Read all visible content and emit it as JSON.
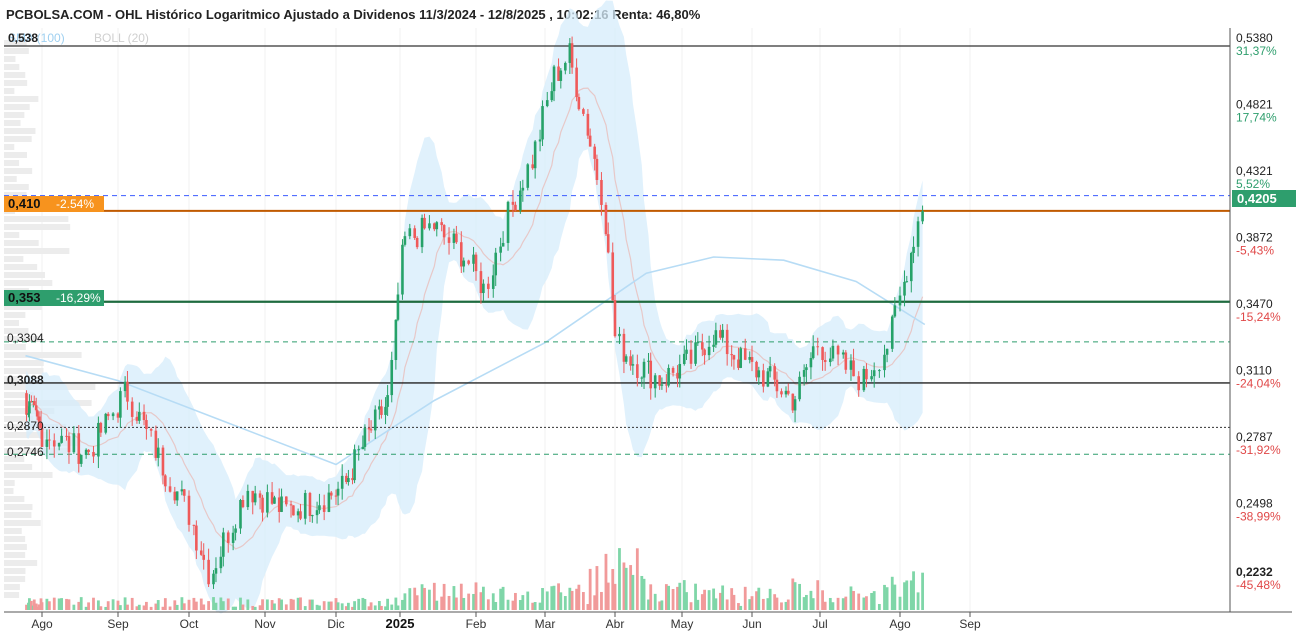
{
  "title": "PCBOLSA.COM - OHL Histórico Logaritmico Ajustado a Dividenos 11/3/2024 - 12/8/2025 , 10:02:16 Renta: 46,80%",
  "legend": {
    "sma": "SMA (100)",
    "boll": "BOLL (20)",
    "top_value": "0,538"
  },
  "colors": {
    "up": "#26a269",
    "down": "#ef5a5a",
    "vol_up": "#7fd6a8",
    "vol_down": "#f19a9a",
    "band_fill": "#d6ecfb",
    "sma": "#b7dcf5",
    "boll_mid": "#e7c8c8",
    "orange": "#f7931e",
    "green_box": "#2e9e6d"
  },
  "right_axis": [
    {
      "price": "0,5380",
      "pct": "31,37%",
      "sign": "pos"
    },
    {
      "price": "0,4821",
      "pct": "17,74%",
      "sign": "pos"
    },
    {
      "price": "0,4321",
      "pct": "5,52%",
      "sign": "pos"
    },
    {
      "price": "0,3872",
      "pct": "-5,43%",
      "sign": "neg"
    },
    {
      "price": "0,3470",
      "pct": "-15,24%",
      "sign": "neg"
    },
    {
      "price": "0,3110",
      "pct": "-24,04%",
      "sign": "neg"
    },
    {
      "price": "0,2787",
      "pct": "-31,92%",
      "sign": "neg"
    },
    {
      "price": "0,2498",
      "pct": "-38,99%",
      "sign": "neg"
    },
    {
      "price": "0,2232",
      "pct": "-45,48%",
      "sign": "neg"
    }
  ],
  "current_price": "0,4205",
  "left_levels": {
    "orange_value": "0,410",
    "orange_pct": "-2.54%",
    "green_value": "0,353",
    "green_pct": "-16,29%",
    "l1": "0,3304",
    "l2": "0,3088",
    "l3": "0,2870",
    "l4": "0,2746"
  },
  "months": [
    "Ago",
    "Sep",
    "Oct",
    "Nov",
    "Dic",
    "2025",
    "Feb",
    "Mar",
    "Abr",
    "May",
    "Jun",
    "Jul",
    "Ago",
    "Sep"
  ],
  "chart_data": {
    "type": "line",
    "title": "PCBOLSA.COM - OHL Histórico Logaritmico Ajustado a Dividenos 11/3/2024 - 12/8/2025 , 10:02:16 Renta: 46,80%",
    "y_scale": "log",
    "ylim": [
      0.215,
      0.555
    ],
    "x_ticks": [
      "Ago",
      "Sep",
      "Oct",
      "Nov",
      "Dic",
      "2025",
      "Feb",
      "Mar",
      "Abr",
      "May",
      "Jun",
      "Jul",
      "Ago",
      "Sep"
    ],
    "series": [
      {
        "name": "",
        "x": [
          "2024-07-15",
          "2024-08-01",
          "2024-08-20",
          "2024-09-05",
          "2024-09-20",
          "2024-10-01",
          "2024-10-10",
          "2024-10-25",
          "2024-11-10",
          "2024-11-25",
          "2024-12-05",
          "2024-12-15",
          "2024-12-27",
          "2025-01-03",
          "2025-01-15",
          "2025-01-28",
          "2025-02-05",
          "2025-02-15",
          "2025-02-25",
          "2025-03-05",
          "2025-03-12",
          "2025-03-20",
          "2025-03-27",
          "2025-04-02",
          "2025-04-10",
          "2025-04-22",
          "2025-05-05",
          "2025-05-15",
          "2025-05-28",
          "2025-06-10",
          "2025-06-20",
          "2025-06-30",
          "2025-07-08",
          "2025-07-18",
          "2025-07-28",
          "2025-08-04",
          "2025-08-12"
        ],
        "values": [
          0.3,
          0.285,
          0.275,
          0.305,
          0.27,
          0.25,
          0.225,
          0.26,
          0.25,
          0.255,
          0.26,
          0.28,
          0.3,
          0.39,
          0.4,
          0.38,
          0.36,
          0.41,
          0.45,
          0.51,
          0.53,
          0.47,
          0.42,
          0.33,
          0.32,
          0.31,
          0.32,
          0.335,
          0.32,
          0.31,
          0.3,
          0.33,
          0.32,
          0.31,
          0.33,
          0.37,
          0.4205
        ]
      },
      {
        "name": "SMA (100)",
        "x": [
          "2024-07-15",
          "2024-09-01",
          "2024-10-15",
          "2024-12-01",
          "2025-01-15",
          "2025-03-01",
          "2025-04-15",
          "2025-05-15",
          "2025-06-15",
          "2025-07-15",
          "2025-08-12"
        ],
        "values": [
          0.323,
          0.31,
          0.29,
          0.27,
          0.3,
          0.33,
          0.37,
          0.38,
          0.378,
          0.365,
          0.34
        ]
      }
    ],
    "levels": [
      0.538,
      0.41,
      0.353,
      0.3304,
      0.3088,
      0.287,
      0.2746
    ]
  }
}
